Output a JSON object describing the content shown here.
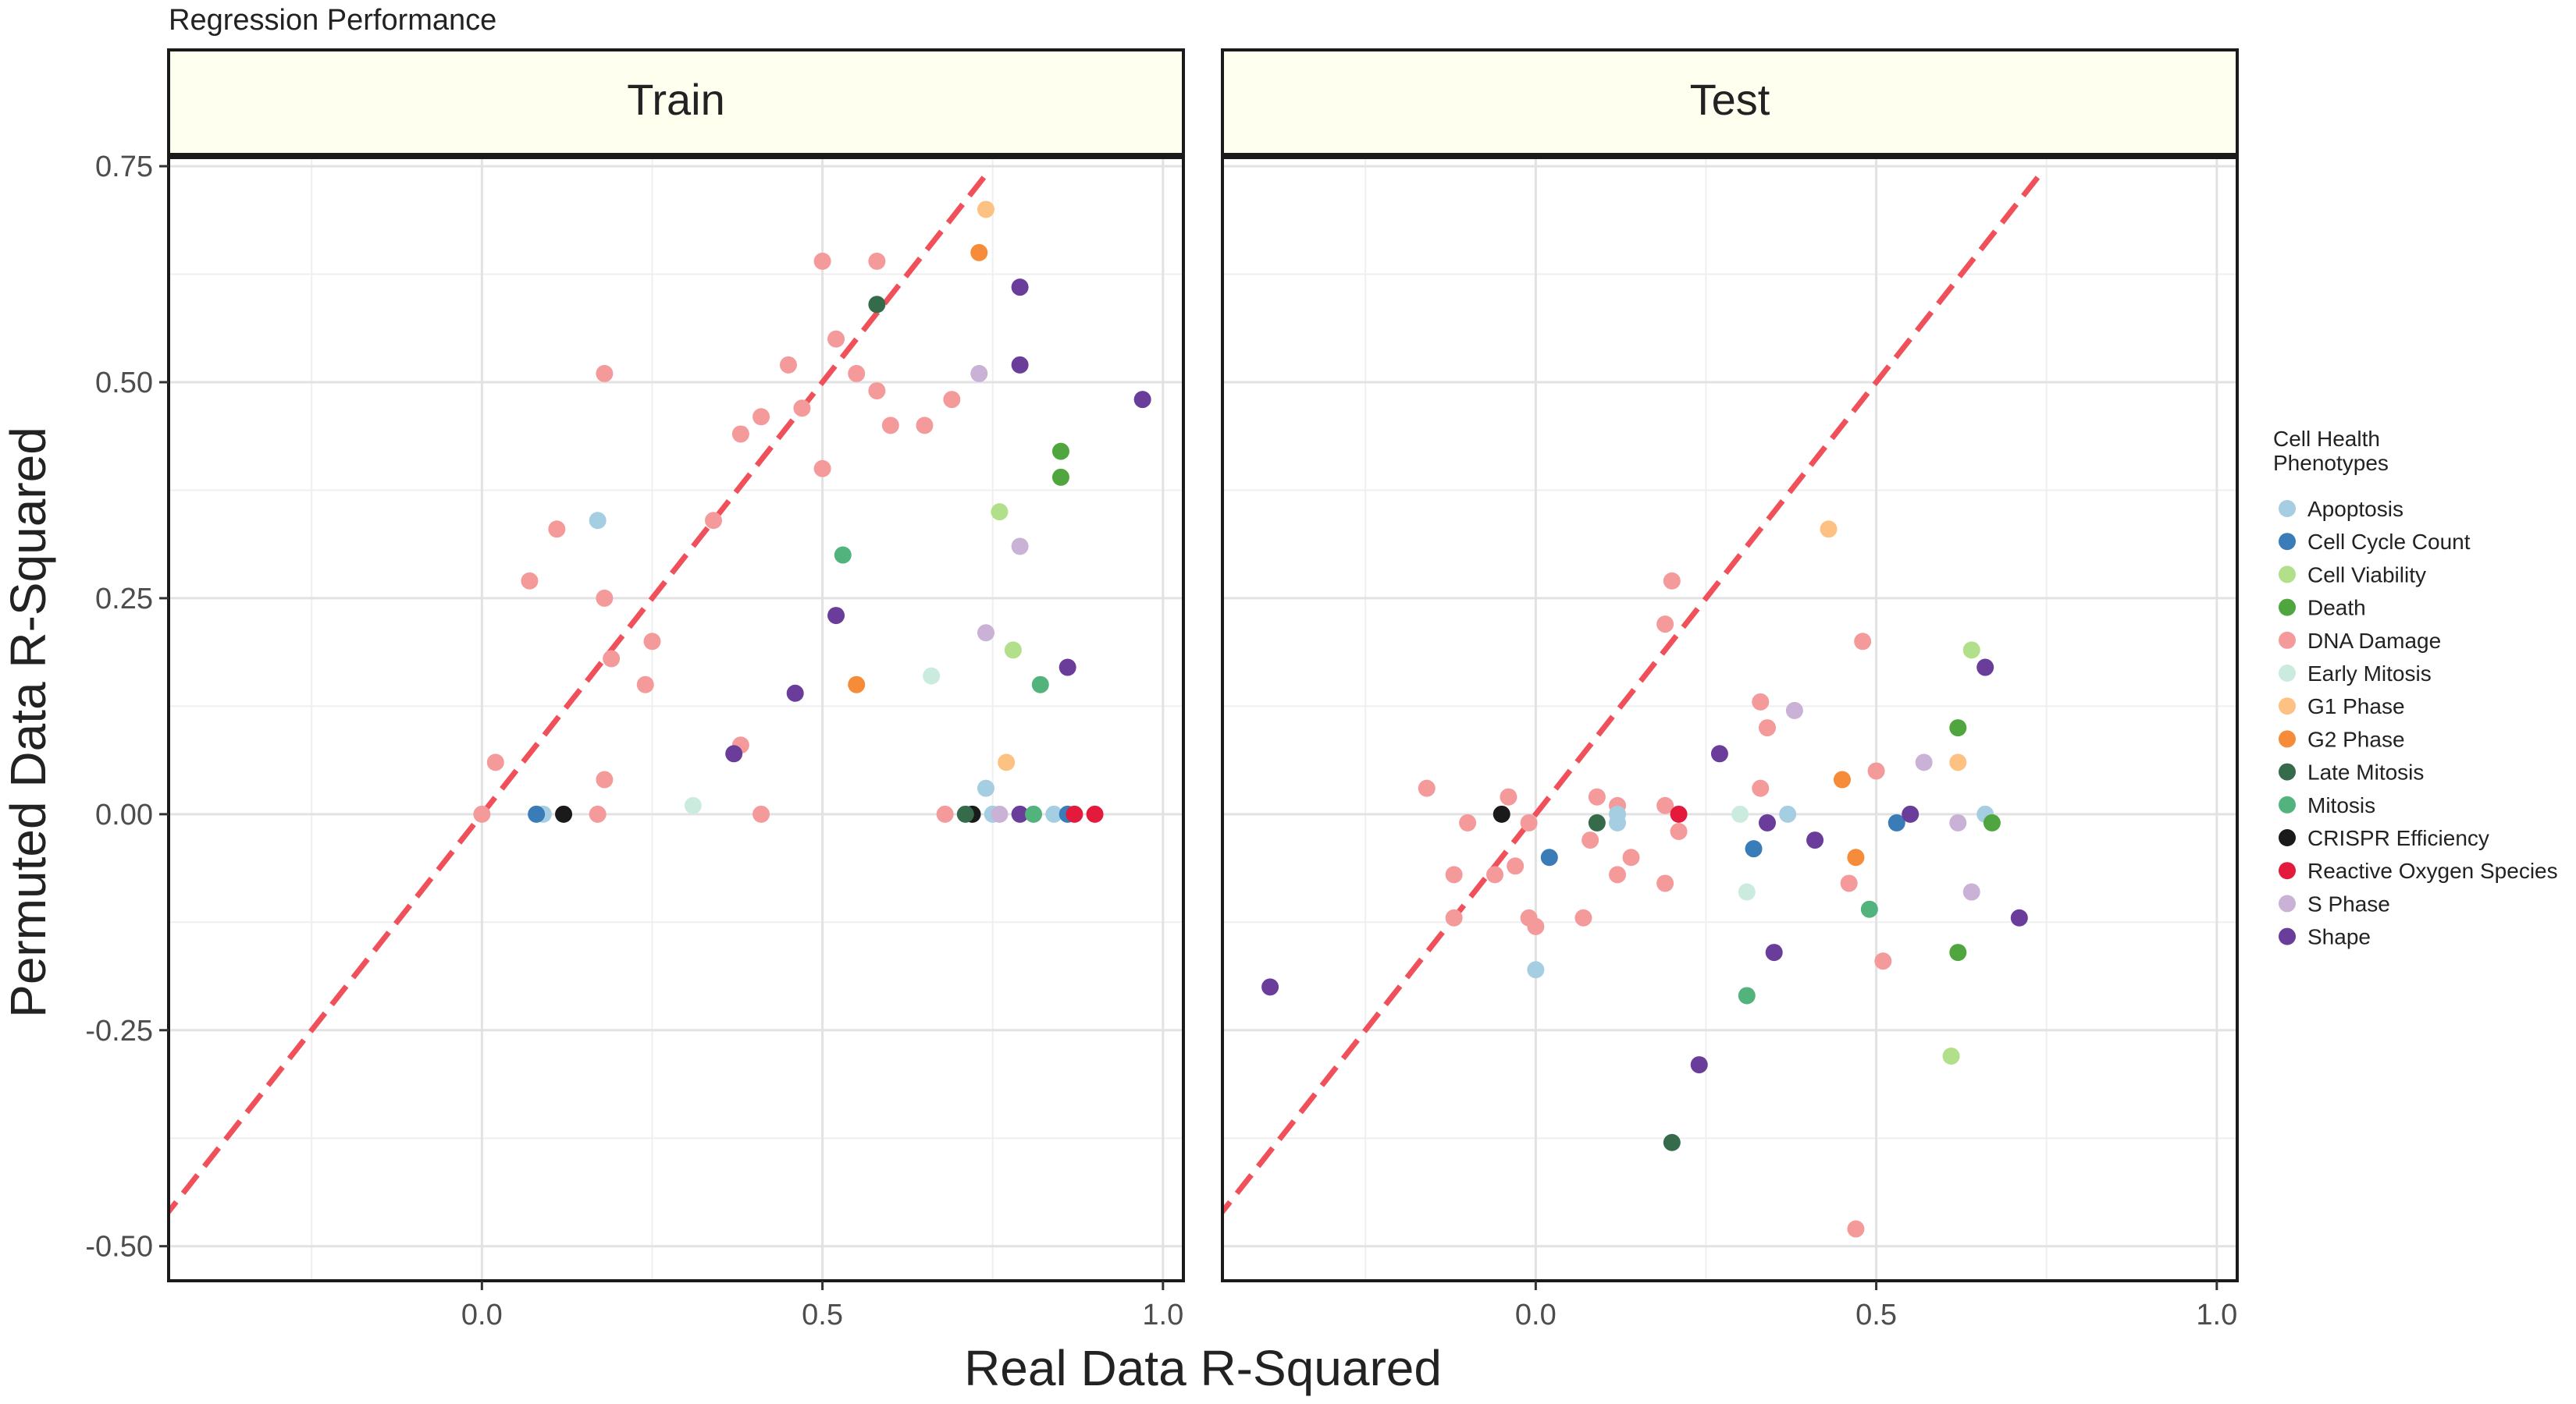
{
  "colors": {
    "Apoptosis": "#a6cee3",
    "Cell Cycle Count": "#3a7cb8",
    "Cell Viability": "#b2df8a",
    "Death": "#4fa63e",
    "DNA Damage": "#f59a9b",
    "Early Mitosis": "#ccebdf",
    "G1 Phase": "#fdc283",
    "G2 Phase": "#f68b3a",
    "Late Mitosis": "#356a4a",
    "Mitosis": "#52b47c",
    "CRISPR Efficiency": "#1a1a1a",
    "Reactive Oxygen Species": "#e31a3c",
    "S Phase": "#cab2d6",
    "Shape": "#6a3d9a",
    "diagonal": "#f0505a",
    "strip_fill": "#fffff0"
  },
  "chart_data": {
    "type": "scatter",
    "title": "Regression Performance",
    "xlabel": "Real Data R-Squared",
    "ylabel": "Permuted Data R-Squared",
    "xlim": [
      -0.46,
      1.03
    ],
    "ylim": [
      -0.54,
      0.76
    ],
    "x_ticks": [
      0.0,
      0.5,
      1.0
    ],
    "x_tick_labels": [
      "0.0",
      "0.5",
      "1.0"
    ],
    "y_ticks": [
      -0.5,
      -0.25,
      0.0,
      0.25,
      0.5,
      0.75
    ],
    "y_tick_labels": [
      "-0.50",
      "-0.25",
      "0.00",
      "0.25",
      "0.50",
      "0.75"
    ],
    "grid": true,
    "reference_line": "y = x",
    "legend_title": "Cell Health\nPhenotypes",
    "legend_placement": "right",
    "legend": [
      "Apoptosis",
      "Cell Cycle Count",
      "Cell Viability",
      "Death",
      "DNA Damage",
      "Early Mitosis",
      "G1 Phase",
      "G2 Phase",
      "Late Mitosis",
      "Mitosis",
      "CRISPR Efficiency",
      "Reactive Oxygen Species",
      "S Phase",
      "Shape"
    ],
    "panels": [
      {
        "label": "Train",
        "points": [
          {
            "c": "DNA Damage",
            "x": 0.0,
            "y": 0.0
          },
          {
            "c": "DNA Damage",
            "x": 0.02,
            "y": 0.06
          },
          {
            "c": "DNA Damage",
            "x": 0.07,
            "y": 0.27
          },
          {
            "c": "DNA Damage",
            "x": 0.11,
            "y": 0.33
          },
          {
            "c": "DNA Damage",
            "x": 0.18,
            "y": 0.51
          },
          {
            "c": "DNA Damage",
            "x": 0.18,
            "y": 0.25
          },
          {
            "c": "DNA Damage",
            "x": 0.19,
            "y": 0.18
          },
          {
            "c": "DNA Damage",
            "x": 0.25,
            "y": 0.2
          },
          {
            "c": "DNA Damage",
            "x": 0.24,
            "y": 0.15
          },
          {
            "c": "DNA Damage",
            "x": 0.18,
            "y": 0.04
          },
          {
            "c": "DNA Damage",
            "x": 0.17,
            "y": 0.0
          },
          {
            "c": "DNA Damage",
            "x": 0.34,
            "y": 0.34
          },
          {
            "c": "DNA Damage",
            "x": 0.38,
            "y": 0.44
          },
          {
            "c": "DNA Damage",
            "x": 0.41,
            "y": 0.46
          },
          {
            "c": "DNA Damage",
            "x": 0.45,
            "y": 0.52
          },
          {
            "c": "DNA Damage",
            "x": 0.47,
            "y": 0.47
          },
          {
            "c": "DNA Damage",
            "x": 0.5,
            "y": 0.64
          },
          {
            "c": "DNA Damage",
            "x": 0.5,
            "y": 0.4
          },
          {
            "c": "DNA Damage",
            "x": 0.52,
            "y": 0.55
          },
          {
            "c": "DNA Damage",
            "x": 0.55,
            "y": 0.51
          },
          {
            "c": "DNA Damage",
            "x": 0.58,
            "y": 0.64
          },
          {
            "c": "DNA Damage",
            "x": 0.58,
            "y": 0.49
          },
          {
            "c": "DNA Damage",
            "x": 0.6,
            "y": 0.45
          },
          {
            "c": "DNA Damage",
            "x": 0.65,
            "y": 0.45
          },
          {
            "c": "DNA Damage",
            "x": 0.69,
            "y": 0.48
          },
          {
            "c": "DNA Damage",
            "x": 0.38,
            "y": 0.08
          },
          {
            "c": "DNA Damage",
            "x": 0.41,
            "y": 0.0
          },
          {
            "c": "DNA Damage",
            "x": 0.68,
            "y": 0.0
          },
          {
            "c": "Apoptosis",
            "x": 0.17,
            "y": 0.34
          },
          {
            "c": "Apoptosis",
            "x": 0.09,
            "y": 0.0
          },
          {
            "c": "Apoptosis",
            "x": 0.74,
            "y": 0.03
          },
          {
            "c": "Apoptosis",
            "x": 0.75,
            "y": 0.0
          },
          {
            "c": "Apoptosis",
            "x": 0.84,
            "y": 0.0
          },
          {
            "c": "Cell Cycle Count",
            "x": 0.08,
            "y": 0.0
          },
          {
            "c": "Cell Cycle Count",
            "x": 0.86,
            "y": 0.0
          },
          {
            "c": "CRISPR Efficiency",
            "x": 0.12,
            "y": 0.0
          },
          {
            "c": "CRISPR Efficiency",
            "x": 0.72,
            "y": 0.0
          },
          {
            "c": "Early Mitosis",
            "x": 0.31,
            "y": 0.01
          },
          {
            "c": "Early Mitosis",
            "x": 0.66,
            "y": 0.16
          },
          {
            "c": "Shape",
            "x": 0.37,
            "y": 0.07
          },
          {
            "c": "Shape",
            "x": 0.46,
            "y": 0.14
          },
          {
            "c": "Shape",
            "x": 0.52,
            "y": 0.23
          },
          {
            "c": "Shape",
            "x": 0.79,
            "y": 0.61
          },
          {
            "c": "Shape",
            "x": 0.79,
            "y": 0.52
          },
          {
            "c": "Shape",
            "x": 0.86,
            "y": 0.17
          },
          {
            "c": "Shape",
            "x": 0.97,
            "y": 0.48
          },
          {
            "c": "Shape",
            "x": 0.79,
            "y": 0.0
          },
          {
            "c": "Mitosis",
            "x": 0.53,
            "y": 0.3
          },
          {
            "c": "Mitosis",
            "x": 0.82,
            "y": 0.15
          },
          {
            "c": "Mitosis",
            "x": 0.81,
            "y": 0.0
          },
          {
            "c": "G2 Phase",
            "x": 0.55,
            "y": 0.15
          },
          {
            "c": "G2 Phase",
            "x": 0.73,
            "y": 0.65
          },
          {
            "c": "G1 Phase",
            "x": 0.74,
            "y": 0.7
          },
          {
            "c": "G1 Phase",
            "x": 0.77,
            "y": 0.06
          },
          {
            "c": "Late Mitosis",
            "x": 0.58,
            "y": 0.59
          },
          {
            "c": "Late Mitosis",
            "x": 0.71,
            "y": 0.0
          },
          {
            "c": "S Phase",
            "x": 0.73,
            "y": 0.51
          },
          {
            "c": "S Phase",
            "x": 0.79,
            "y": 0.31
          },
          {
            "c": "S Phase",
            "x": 0.74,
            "y": 0.21
          },
          {
            "c": "S Phase",
            "x": 0.76,
            "y": 0.0
          },
          {
            "c": "Cell Viability",
            "x": 0.76,
            "y": 0.35
          },
          {
            "c": "Cell Viability",
            "x": 0.78,
            "y": 0.19
          },
          {
            "c": "Death",
            "x": 0.85,
            "y": 0.42
          },
          {
            "c": "Death",
            "x": 0.85,
            "y": 0.39
          },
          {
            "c": "Reactive Oxygen Species",
            "x": 0.87,
            "y": 0.0
          },
          {
            "c": "Reactive Oxygen Species",
            "x": 0.9,
            "y": 0.0
          }
        ]
      },
      {
        "label": "Test",
        "points": [
          {
            "c": "Shape",
            "x": -0.39,
            "y": -0.2
          },
          {
            "c": "DNA Damage",
            "x": -0.16,
            "y": 0.03
          },
          {
            "c": "DNA Damage",
            "x": -0.1,
            "y": -0.01
          },
          {
            "c": "DNA Damage",
            "x": -0.12,
            "y": -0.07
          },
          {
            "c": "DNA Damage",
            "x": -0.12,
            "y": -0.12
          },
          {
            "c": "DNA Damage",
            "x": -0.04,
            "y": 0.02
          },
          {
            "c": "DNA Damage",
            "x": -0.01,
            "y": -0.01
          },
          {
            "c": "DNA Damage",
            "x": -0.06,
            "y": -0.07
          },
          {
            "c": "DNA Damage",
            "x": -0.03,
            "y": -0.06
          },
          {
            "c": "DNA Damage",
            "x": -0.01,
            "y": -0.12
          },
          {
            "c": "DNA Damage",
            "x": 0.0,
            "y": -0.13
          },
          {
            "c": "DNA Damage",
            "x": 0.07,
            "y": -0.12
          },
          {
            "c": "DNA Damage",
            "x": 0.08,
            "y": -0.03
          },
          {
            "c": "DNA Damage",
            "x": 0.09,
            "y": 0.02
          },
          {
            "c": "DNA Damage",
            "x": 0.12,
            "y": 0.01
          },
          {
            "c": "DNA Damage",
            "x": 0.12,
            "y": -0.07
          },
          {
            "c": "DNA Damage",
            "x": 0.14,
            "y": -0.05
          },
          {
            "c": "DNA Damage",
            "x": 0.19,
            "y": 0.22
          },
          {
            "c": "DNA Damage",
            "x": 0.2,
            "y": 0.27
          },
          {
            "c": "DNA Damage",
            "x": 0.19,
            "y": 0.01
          },
          {
            "c": "DNA Damage",
            "x": 0.19,
            "y": -0.08
          },
          {
            "c": "DNA Damage",
            "x": 0.21,
            "y": -0.02
          },
          {
            "c": "DNA Damage",
            "x": 0.33,
            "y": 0.13
          },
          {
            "c": "DNA Damage",
            "x": 0.34,
            "y": 0.1
          },
          {
            "c": "DNA Damage",
            "x": 0.33,
            "y": 0.03
          },
          {
            "c": "DNA Damage",
            "x": 0.46,
            "y": -0.08
          },
          {
            "c": "DNA Damage",
            "x": 0.48,
            "y": 0.2
          },
          {
            "c": "DNA Damage",
            "x": 0.5,
            "y": 0.05
          },
          {
            "c": "DNA Damage",
            "x": 0.51,
            "y": -0.17
          },
          {
            "c": "DNA Damage",
            "x": 0.47,
            "y": -0.48
          },
          {
            "c": "CRISPR Efficiency",
            "x": -0.05,
            "y": 0.0
          },
          {
            "c": "Apoptosis",
            "x": 0.0,
            "y": -0.18
          },
          {
            "c": "Apoptosis",
            "x": 0.12,
            "y": 0.0
          },
          {
            "c": "Apoptosis",
            "x": 0.12,
            "y": -0.01
          },
          {
            "c": "Apoptosis",
            "x": 0.37,
            "y": 0.0
          },
          {
            "c": "Apoptosis",
            "x": 0.66,
            "y": 0.0
          },
          {
            "c": "Cell Cycle Count",
            "x": 0.02,
            "y": -0.05
          },
          {
            "c": "Cell Cycle Count",
            "x": 0.32,
            "y": -0.04
          },
          {
            "c": "Cell Cycle Count",
            "x": 0.53,
            "y": -0.01
          },
          {
            "c": "Late Mitosis",
            "x": 0.09,
            "y": -0.01
          },
          {
            "c": "Late Mitosis",
            "x": 0.2,
            "y": -0.38
          },
          {
            "c": "Reactive Oxygen Species",
            "x": 0.21,
            "y": 0.0
          },
          {
            "c": "Shape",
            "x": 0.24,
            "y": -0.29
          },
          {
            "c": "Shape",
            "x": 0.27,
            "y": 0.07
          },
          {
            "c": "Shape",
            "x": 0.34,
            "y": -0.01
          },
          {
            "c": "Shape",
            "x": 0.35,
            "y": -0.16
          },
          {
            "c": "Shape",
            "x": 0.41,
            "y": -0.03
          },
          {
            "c": "Shape",
            "x": 0.55,
            "y": 0.0
          },
          {
            "c": "Shape",
            "x": 0.66,
            "y": 0.17
          },
          {
            "c": "Shape",
            "x": 0.71,
            "y": -0.12
          },
          {
            "c": "Early Mitosis",
            "x": 0.3,
            "y": 0.0
          },
          {
            "c": "Early Mitosis",
            "x": 0.31,
            "y": -0.09
          },
          {
            "c": "Mitosis",
            "x": 0.31,
            "y": -0.21
          },
          {
            "c": "Mitosis",
            "x": 0.49,
            "y": -0.11
          },
          {
            "c": "S Phase",
            "x": 0.38,
            "y": 0.12
          },
          {
            "c": "S Phase",
            "x": 0.57,
            "y": 0.06
          },
          {
            "c": "S Phase",
            "x": 0.62,
            "y": -0.01
          },
          {
            "c": "S Phase",
            "x": 0.64,
            "y": -0.09
          },
          {
            "c": "G1 Phase",
            "x": 0.43,
            "y": 0.33
          },
          {
            "c": "G1 Phase",
            "x": 0.62,
            "y": 0.06
          },
          {
            "c": "G2 Phase",
            "x": 0.45,
            "y": 0.04
          },
          {
            "c": "G2 Phase",
            "x": 0.47,
            "y": -0.05
          },
          {
            "c": "Cell Viability",
            "x": 0.64,
            "y": 0.19
          },
          {
            "c": "Cell Viability",
            "x": 0.61,
            "y": -0.28
          },
          {
            "c": "Death",
            "x": 0.62,
            "y": 0.1
          },
          {
            "c": "Death",
            "x": 0.62,
            "y": -0.16
          },
          {
            "c": "Death",
            "x": 0.67,
            "y": -0.01
          }
        ]
      }
    ]
  }
}
